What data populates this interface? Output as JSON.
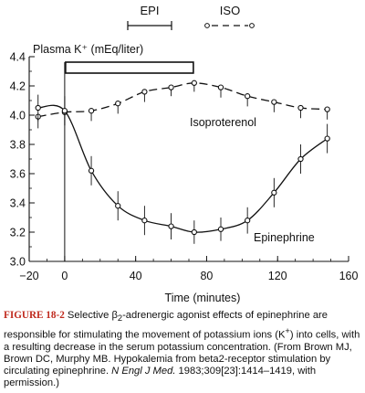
{
  "chart_data": {
    "type": "line",
    "ylabel": "Plasma K⁺ (mEq/liter)",
    "xlabel": "Time (minutes)",
    "xlim": [
      -20,
      160
    ],
    "ylim": [
      3.0,
      4.4
    ],
    "xticks": [
      "−20",
      "0",
      "40",
      "80",
      "120",
      "160"
    ],
    "xtick_values": [
      -20,
      0,
      40,
      80,
      120,
      160
    ],
    "yticks": [
      "3.0",
      "3.2",
      "3.4",
      "3.6",
      "3.8",
      "4.0",
      "4.2",
      "4.4"
    ],
    "ytick_values": [
      3.0,
      3.2,
      3.4,
      3.6,
      3.8,
      4.0,
      4.2,
      4.4
    ],
    "grid": false,
    "infusion_bar": {
      "x_start": 0,
      "x_end": 72
    },
    "legend": [
      {
        "label": "EPI",
        "style": "solid"
      },
      {
        "label": "ISO",
        "style": "dashed"
      }
    ],
    "series": [
      {
        "name": "Isoproterenol",
        "style": "dashed",
        "x": [
          -15,
          0,
          15,
          30,
          45,
          60,
          73,
          88,
          103,
          118,
          133,
          148
        ],
        "y": [
          3.99,
          4.02,
          4.03,
          4.08,
          4.16,
          4.19,
          4.22,
          4.19,
          4.13,
          4.09,
          4.05,
          4.04
        ],
        "err": [
          0.08,
          0.09,
          0.07,
          0.07,
          0.07,
          0.06,
          0.06,
          0.07,
          0.07,
          0.07,
          0.07,
          0.07
        ]
      },
      {
        "name": "Epinephrine",
        "style": "solid",
        "x": [
          -15,
          0,
          15,
          30,
          45,
          60,
          73,
          88,
          103,
          118,
          133,
          148
        ],
        "y": [
          4.05,
          4.03,
          3.62,
          3.38,
          3.28,
          3.24,
          3.2,
          3.22,
          3.28,
          3.47,
          3.7,
          3.84
        ],
        "err": [
          0.09,
          0.1,
          0.1,
          0.1,
          0.1,
          0.09,
          0.08,
          0.08,
          0.09,
          0.1,
          0.1,
          0.1
        ]
      }
    ]
  },
  "caption": {
    "lead": "FIGURE 18-2",
    "text1": " Selective β",
    "sub": "2",
    "text2": "-adrenergic agonist effects of epinephrine are responsible for stimulating the movement of potassium ions (K",
    "sup": "+",
    "text3": ") into cells, with a resulting decrease in the serum potassium concentration. (From Brown MJ, Brown DC, Murphy MB. Hypokalemia from beta2-receptor stimulation by circulating epinephrine. ",
    "journal": "N Engl J Med.",
    "text4": " 1983;309[23]:1414–1419, with permission.)"
  }
}
